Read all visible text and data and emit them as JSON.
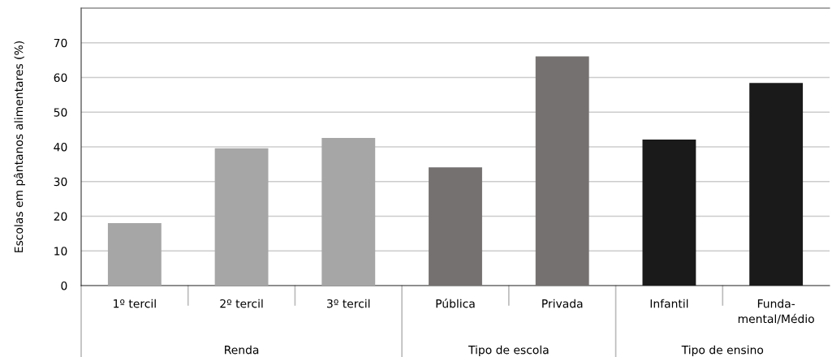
{
  "chart_data": {
    "type": "bar",
    "ylabel": "Escolas em pântanos alimentares (%)",
    "categories": [
      "1º tercil",
      "2º tercil",
      "3º tercil",
      "Pública",
      "Privada",
      "Infantil",
      "Funda-\nmental/Médio"
    ],
    "values": [
      18.0,
      39.6,
      42.6,
      34.1,
      66.1,
      42.1,
      58.4
    ],
    "colors": [
      "#a6a6a6",
      "#a6a6a6",
      "#a6a6a6",
      "#757170",
      "#757170",
      "#1a1a1a",
      "#1a1a1a"
    ],
    "annotations": [
      "Renda",
      "Tipo de escola",
      "Tipo de ensino"
    ],
    "ylim": [
      0,
      80
    ],
    "yticks": [
      0,
      10,
      20,
      30,
      40,
      50,
      60,
      70
    ],
    "grid": "y"
  }
}
